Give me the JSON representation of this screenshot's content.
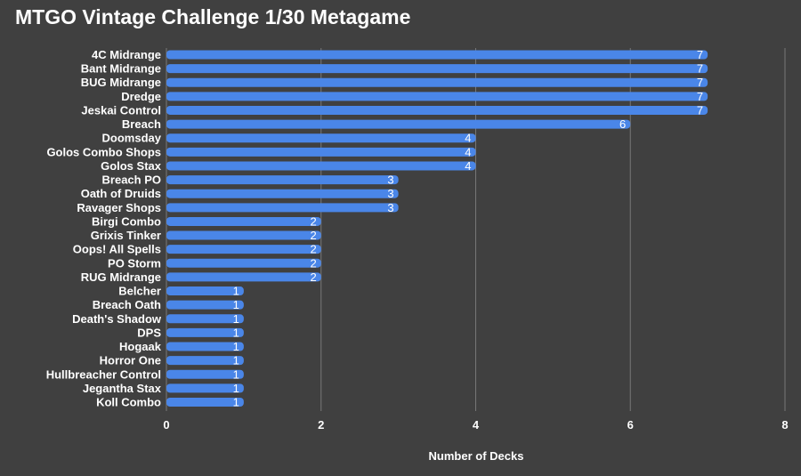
{
  "chart_data": {
    "type": "bar",
    "orientation": "horizontal",
    "title": "MTGO Vintage Challenge 1/30 Metagame",
    "xlabel": "Number of Decks",
    "ylabel": "",
    "xlim": [
      0,
      8
    ],
    "xticks": [
      "0",
      "2",
      "4",
      "6",
      "8"
    ],
    "grid": true,
    "bar_color": "#4a86e8",
    "background_color": "#404040",
    "text_color": "#ffffff",
    "categories": [
      "4C Midrange",
      "Bant Midrange",
      "BUG Midrange",
      "Dredge",
      "Jeskai Control",
      "Breach",
      "Doomsday",
      "Golos Combo Shops",
      "Golos Stax",
      "Breach PO",
      "Oath of Druids",
      "Ravager Shops",
      "Birgi Combo",
      "Grixis Tinker",
      "Oops! All Spells",
      "PO Storm",
      "RUG Midrange",
      "Belcher",
      "Breach Oath",
      "Death's Shadow",
      "DPS",
      "Hogaak",
      "Horror One",
      "Hullbreacher Control",
      "Jegantha Stax",
      "Koll Combo"
    ],
    "values": [
      7,
      7,
      7,
      7,
      7,
      6,
      4,
      4,
      4,
      3,
      3,
      3,
      2,
      2,
      2,
      2,
      2,
      1,
      1,
      1,
      1,
      1,
      1,
      1,
      1,
      1
    ]
  }
}
